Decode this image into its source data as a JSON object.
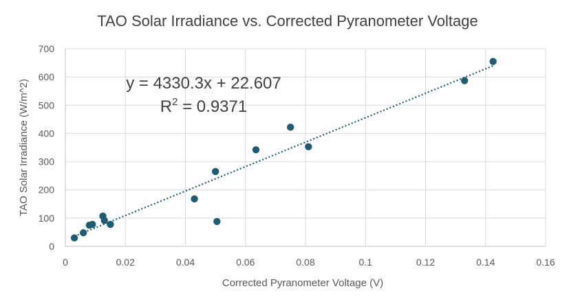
{
  "chart_data": {
    "type": "scatter",
    "title": "TAO Solar Irradiance vs. Corrected Pyranometer Voltage",
    "xlabel": "Corrected Pyranometer Voltage (V)",
    "ylabel": "TAO Solar Irradiance (W/m^2)",
    "xlim": [
      0,
      0.16
    ],
    "ylim": [
      0,
      700
    ],
    "xticks": [
      0,
      0.02,
      0.04,
      0.06,
      0.08,
      0.1,
      0.12,
      0.14,
      0.16
    ],
    "xtick_labels": [
      "0",
      "0.02",
      "0.04",
      "0.06",
      "0.08",
      "0.1",
      "0.12",
      "0.14",
      "0.16"
    ],
    "yticks": [
      0,
      100,
      200,
      300,
      400,
      500,
      600,
      700
    ],
    "ytick_labels": [
      "0",
      "100",
      "200",
      "300",
      "400",
      "500",
      "600",
      "700"
    ],
    "grid": true,
    "legend": "none",
    "colors": {
      "points": "#1f5c73",
      "trendline": "#1f5c73"
    },
    "points": [
      {
        "x": 0.003,
        "y": 30
      },
      {
        "x": 0.006,
        "y": 48
      },
      {
        "x": 0.008,
        "y": 75
      },
      {
        "x": 0.009,
        "y": 78
      },
      {
        "x": 0.0125,
        "y": 107
      },
      {
        "x": 0.013,
        "y": 92
      },
      {
        "x": 0.015,
        "y": 78
      },
      {
        "x": 0.043,
        "y": 168
      },
      {
        "x": 0.05,
        "y": 265
      },
      {
        "x": 0.0505,
        "y": 88
      },
      {
        "x": 0.0635,
        "y": 342
      },
      {
        "x": 0.075,
        "y": 422
      },
      {
        "x": 0.081,
        "y": 353
      },
      {
        "x": 0.133,
        "y": 587
      },
      {
        "x": 0.1425,
        "y": 655
      }
    ],
    "trendline": {
      "type": "linear",
      "slope": 4330.3,
      "intercept": 22.607,
      "x_range": [
        0.003,
        0.1425
      ],
      "equation_label": "y = 4330.3x + 22.607",
      "r2_prefix": "R",
      "r2_sup": "2",
      "r2_value": " = 0.9371"
    }
  }
}
